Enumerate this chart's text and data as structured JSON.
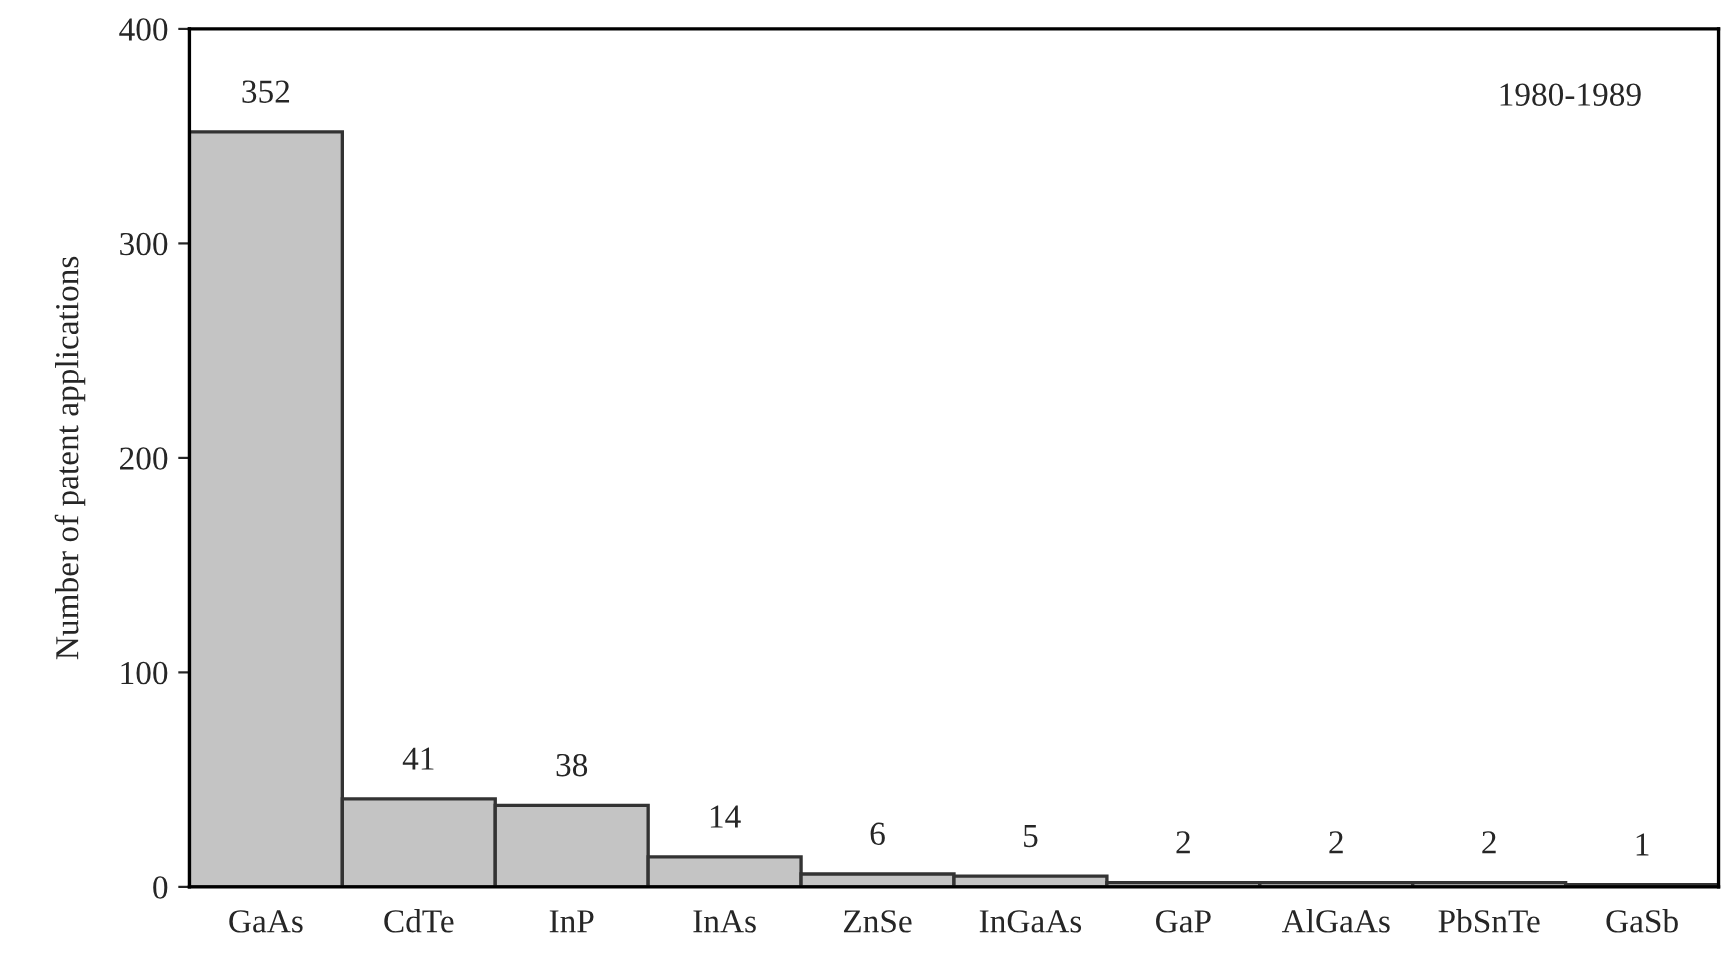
{
  "chart_data": {
    "type": "bar",
    "ylabel": "Number of patent applications",
    "categories": [
      "GaAs",
      "CdTe",
      "InP",
      "InAs",
      "ZnSe",
      "InGaAs",
      "GaP",
      "AlGaAs",
      "PbSnTe",
      "GaSb"
    ],
    "values": [
      352,
      41,
      38,
      14,
      6,
      5,
      2,
      2,
      2,
      1
    ],
    "color": "#c4c4c4",
    "ylim": [
      0,
      400
    ],
    "yticks": [
      0,
      100,
      200,
      300,
      400
    ],
    "grid": false,
    "data_labels": true,
    "annotations": [
      "1980-1989"
    ]
  }
}
